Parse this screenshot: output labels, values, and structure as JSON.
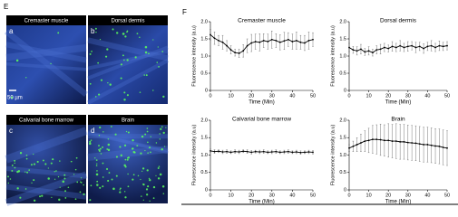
{
  "panel_e": {
    "label": "E",
    "images": [
      {
        "letter": "a",
        "title": "Cremaster muscle"
      },
      {
        "letter": "b",
        "title": "Dorsal dermis"
      },
      {
        "letter": "c",
        "title": "Calvarial bone marrow"
      },
      {
        "letter": "d",
        "title": "Brain"
      }
    ],
    "scale_bar": "50 µm"
  },
  "panel_f_label": "F",
  "chart_data": [
    {
      "type": "line",
      "title": "Cremaster muscle",
      "xlabel": "Time (Min)",
      "ylabel": "Fluorescence intensity (a.u)",
      "x": [
        0,
        2,
        4,
        6,
        8,
        10,
        12,
        14,
        16,
        18,
        20,
        22,
        24,
        26,
        28,
        30,
        32,
        34,
        36,
        38,
        40,
        42,
        44,
        46,
        48,
        50
      ],
      "values": [
        1.62,
        1.52,
        1.45,
        1.4,
        1.3,
        1.18,
        1.1,
        1.08,
        1.15,
        1.3,
        1.38,
        1.42,
        1.4,
        1.45,
        1.42,
        1.48,
        1.45,
        1.4,
        1.44,
        1.48,
        1.42,
        1.45,
        1.4,
        1.38,
        1.45,
        1.48
      ],
      "errors": [
        0.15,
        0.18,
        0.15,
        0.2,
        0.15,
        0.12,
        0.1,
        0.12,
        0.18,
        0.2,
        0.25,
        0.22,
        0.25,
        0.2,
        0.22,
        0.25,
        0.2,
        0.22,
        0.25,
        0.2,
        0.22,
        0.25,
        0.2,
        0.22,
        0.25,
        0.2
      ],
      "color": "#000000",
      "xlim": [
        0,
        50
      ],
      "ylim": [
        0,
        2
      ],
      "xticks": [
        0,
        10,
        20,
        30,
        40,
        50
      ],
      "yticks": [
        0,
        0.5,
        {
          "value": 1,
          "label": "1.0"
        },
        1.5,
        {
          "value": 2,
          "label": "2.0"
        }
      ]
    },
    {
      "type": "line",
      "title": "Dorsal dermis",
      "xlabel": "Time (Min)",
      "ylabel": "Fluorescence intensity (a.u)",
      "x": [
        0,
        2,
        4,
        6,
        8,
        10,
        12,
        14,
        16,
        18,
        20,
        22,
        24,
        26,
        28,
        30,
        32,
        34,
        36,
        38,
        40,
        42,
        44,
        46,
        48,
        50
      ],
      "values": [
        1.25,
        1.18,
        1.15,
        1.2,
        1.12,
        1.15,
        1.1,
        1.18,
        1.2,
        1.25,
        1.22,
        1.28,
        1.25,
        1.3,
        1.25,
        1.28,
        1.3,
        1.25,
        1.28,
        1.22,
        1.28,
        1.3,
        1.25,
        1.3,
        1.28,
        1.3
      ],
      "errors": [
        0.12,
        0.1,
        0.12,
        0.14,
        0.1,
        0.12,
        0.1,
        0.12,
        0.14,
        0.12,
        0.1,
        0.14,
        0.12,
        0.15,
        0.12,
        0.14,
        0.12,
        0.15,
        0.12,
        0.14,
        0.12,
        0.15,
        0.12,
        0.14,
        0.12,
        0.12
      ],
      "color": "#000000",
      "xlim": [
        0,
        50
      ],
      "ylim": [
        0,
        2
      ],
      "xticks": [
        0,
        10,
        20,
        30,
        40,
        50
      ],
      "yticks": [
        0,
        0.5,
        {
          "value": 1,
          "label": "1.0"
        },
        1.5,
        {
          "value": 2,
          "label": "2.0"
        }
      ]
    },
    {
      "type": "line",
      "title": "Calvarial bone marrow",
      "xlabel": "Time (Min)",
      "ylabel": "Fluorescence intensity (a.u)",
      "x": [
        0,
        2,
        4,
        6,
        8,
        10,
        12,
        14,
        16,
        18,
        20,
        22,
        24,
        26,
        28,
        30,
        32,
        34,
        36,
        38,
        40,
        42,
        44,
        46,
        48,
        50
      ],
      "values": [
        1.12,
        1.1,
        1.11,
        1.09,
        1.1,
        1.08,
        1.1,
        1.09,
        1.11,
        1.1,
        1.08,
        1.1,
        1.09,
        1.1,
        1.08,
        1.09,
        1.1,
        1.08,
        1.09,
        1.1,
        1.08,
        1.09,
        1.07,
        1.08,
        1.09,
        1.08
      ],
      "errors": [
        0.05,
        0.05,
        0.04,
        0.05,
        0.05,
        0.04,
        0.05,
        0.05,
        0.04,
        0.05,
        0.05,
        0.04,
        0.05,
        0.05,
        0.04,
        0.05,
        0.05,
        0.04,
        0.05,
        0.05,
        0.04,
        0.05,
        0.05,
        0.04,
        0.05,
        0.05
      ],
      "color": "#000000",
      "xlim": [
        0,
        50
      ],
      "ylim": [
        0,
        2
      ],
      "xticks": [
        0,
        10,
        20,
        30,
        40,
        50
      ],
      "yticks": [
        0,
        0.5,
        {
          "value": 1,
          "label": "1.0"
        },
        1.5,
        {
          "value": 2,
          "label": "2.0"
        }
      ]
    },
    {
      "type": "line",
      "title": "Brain",
      "xlabel": "Time (Min)",
      "ylabel": "Fluorescence intensity (a.u)",
      "x": [
        0,
        2,
        4,
        6,
        8,
        10,
        12,
        14,
        16,
        18,
        20,
        22,
        24,
        26,
        28,
        30,
        32,
        34,
        36,
        38,
        40,
        42,
        44,
        46,
        48,
        50
      ],
      "values": [
        1.2,
        1.25,
        1.3,
        1.35,
        1.4,
        1.42,
        1.45,
        1.45,
        1.44,
        1.42,
        1.42,
        1.4,
        1.4,
        1.38,
        1.38,
        1.36,
        1.35,
        1.34,
        1.32,
        1.3,
        1.3,
        1.28,
        1.26,
        1.25,
        1.22,
        1.2
      ],
      "errors": [
        0.1,
        0.15,
        0.2,
        0.25,
        0.3,
        0.35,
        0.4,
        0.42,
        0.45,
        0.45,
        0.48,
        0.48,
        0.5,
        0.5,
        0.5,
        0.5,
        0.5,
        0.5,
        0.5,
        0.5,
        0.5,
        0.5,
        0.5,
        0.5,
        0.5,
        0.5
      ],
      "color": "#000000",
      "xlim": [
        0,
        50
      ],
      "ylim": [
        0,
        2
      ],
      "xticks": [
        0,
        10,
        20,
        30,
        40,
        50
      ],
      "yticks": [
        0,
        0.5,
        {
          "value": 1,
          "label": "1.0"
        },
        1.5,
        {
          "value": 2,
          "label": "2.0"
        }
      ]
    }
  ]
}
